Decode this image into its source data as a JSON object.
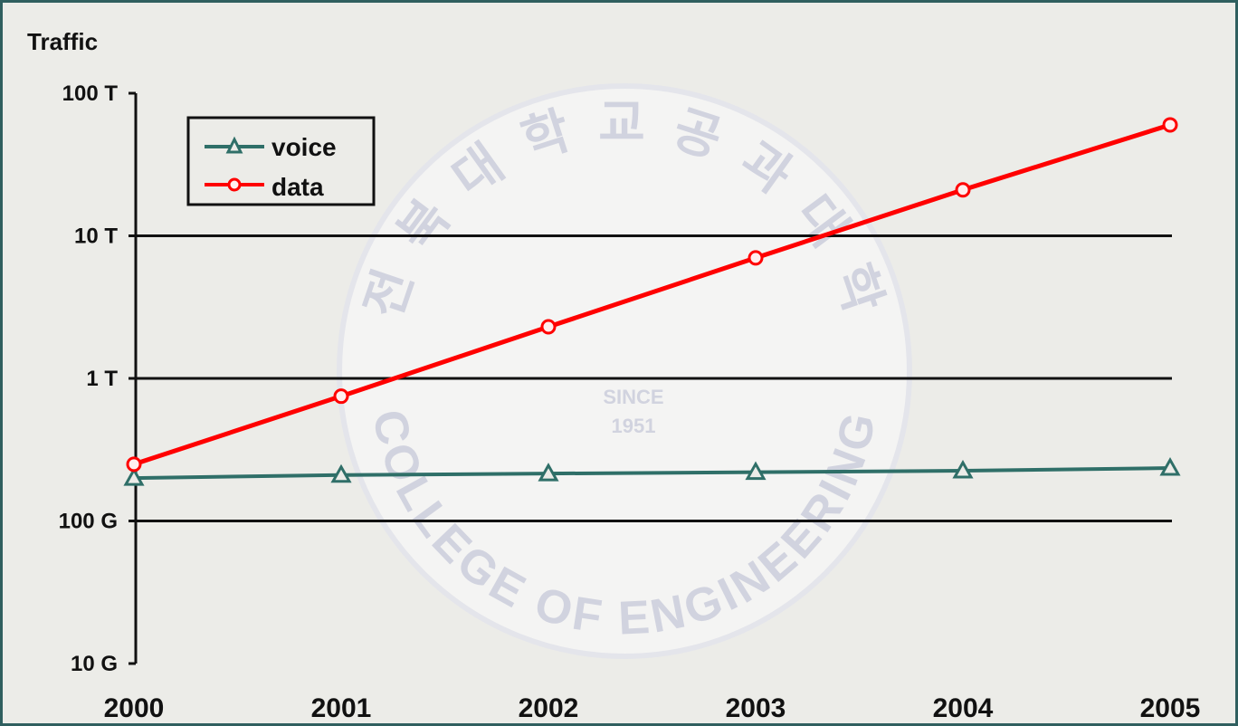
{
  "chart_data": {
    "type": "line",
    "ylabel": "Traffic",
    "yscale": "log",
    "ylim": [
      "10 G",
      "100 T"
    ],
    "yticks": [
      "100 T",
      "10 T",
      "1 T",
      "100 G",
      "10 G"
    ],
    "categories": [
      "2000",
      "2001",
      "2002",
      "2003",
      "2004",
      "2005"
    ],
    "series": [
      {
        "name": "voice",
        "color": "#2f6f68",
        "marker": "triangle",
        "values": [
          "200 G",
          "210 G",
          "215 G",
          "220 G",
          "225 G",
          "235 G"
        ]
      },
      {
        "name": "data",
        "color": "#ff0000",
        "marker": "circle",
        "values": [
          "250 G",
          "750 G",
          "2.3 T",
          "7 T",
          "21 T",
          "60 T"
        ]
      }
    ],
    "grid": true,
    "legend": "top-left"
  },
  "watermark": {
    "arc_top": "전 북 대 학 교 공 과 대 학",
    "arc_bottom": "COLLEGE OF ENGINEERING",
    "since": "SINCE",
    "year": "1951"
  }
}
